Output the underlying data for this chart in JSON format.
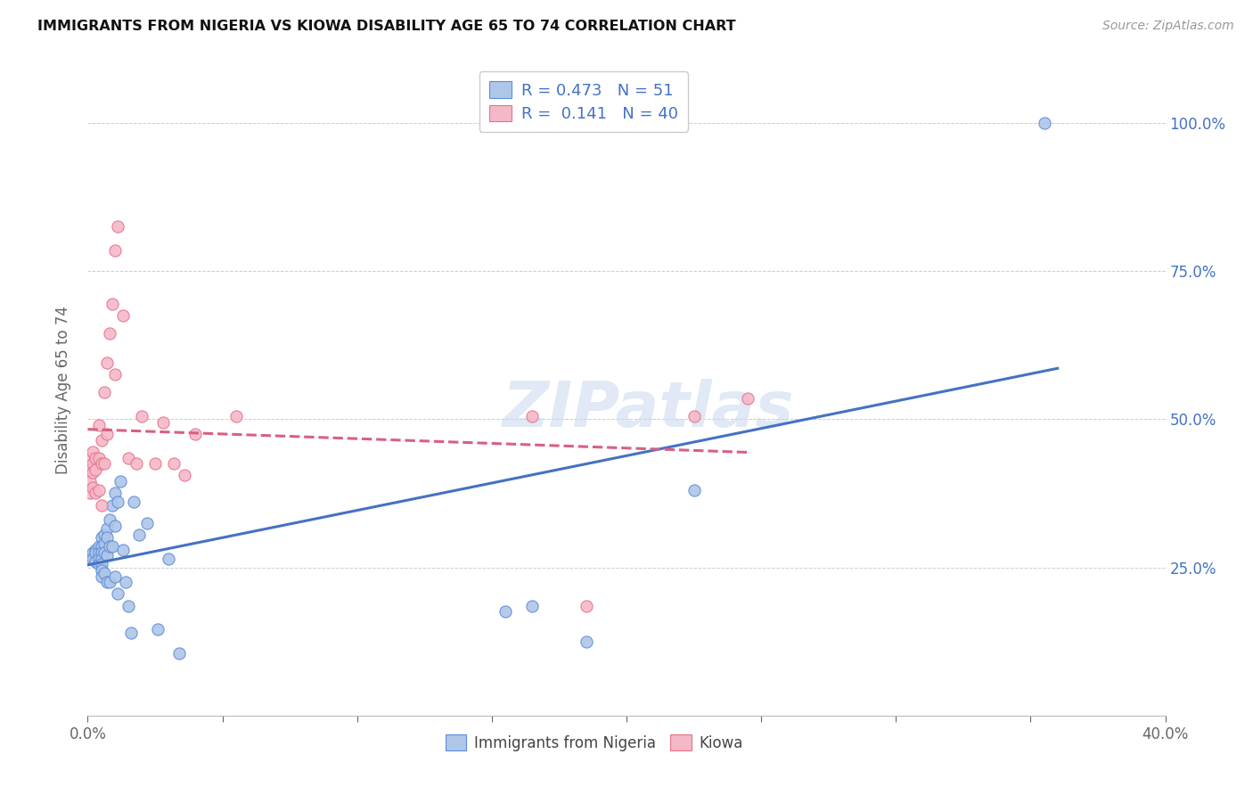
{
  "title": "IMMIGRANTS FROM NIGERIA VS KIOWA DISABILITY AGE 65 TO 74 CORRELATION CHART",
  "source": "Source: ZipAtlas.com",
  "ylabel_label": "Disability Age 65 to 74",
  "xlim": [
    0.0,
    0.4
  ],
  "ylim": [
    0.0,
    1.1
  ],
  "ytick_positions": [
    0.0,
    0.25,
    0.5,
    0.75,
    1.0
  ],
  "ytick_labels": [
    "",
    "25.0%",
    "50.0%",
    "75.0%",
    "100.0%"
  ],
  "xtick_positions": [
    0.0,
    0.05,
    0.1,
    0.15,
    0.2,
    0.25,
    0.3,
    0.35,
    0.4
  ],
  "xtick_labels": [
    "0.0%",
    "",
    "",
    "",
    "",
    "",
    "",
    "",
    "40.0%"
  ],
  "blue_R": 0.473,
  "blue_N": 51,
  "pink_R": 0.141,
  "pink_N": 40,
  "blue_face_color": "#aec6e8",
  "blue_edge_color": "#5b8dd9",
  "pink_face_color": "#f5b8c8",
  "pink_edge_color": "#e8728a",
  "blue_line_color": "#4472c4",
  "pink_line_color": "#d96080",
  "legend_text_color": "#4472c4",
  "watermark": "ZIPatlas",
  "blue_x": [
    0.001,
    0.002,
    0.002,
    0.003,
    0.003,
    0.003,
    0.004,
    0.004,
    0.004,
    0.004,
    0.005,
    0.005,
    0.005,
    0.005,
    0.005,
    0.005,
    0.005,
    0.006,
    0.006,
    0.006,
    0.006,
    0.007,
    0.007,
    0.007,
    0.007,
    0.008,
    0.008,
    0.008,
    0.009,
    0.009,
    0.01,
    0.01,
    0.01,
    0.011,
    0.011,
    0.012,
    0.013,
    0.014,
    0.015,
    0.016,
    0.017,
    0.019,
    0.022,
    0.026,
    0.03,
    0.034,
    0.155,
    0.165,
    0.185,
    0.225,
    0.355
  ],
  "blue_y": [
    0.265,
    0.275,
    0.265,
    0.28,
    0.275,
    0.26,
    0.285,
    0.275,
    0.265,
    0.255,
    0.3,
    0.285,
    0.275,
    0.265,
    0.255,
    0.245,
    0.235,
    0.305,
    0.29,
    0.275,
    0.24,
    0.315,
    0.3,
    0.27,
    0.225,
    0.33,
    0.285,
    0.225,
    0.355,
    0.285,
    0.375,
    0.32,
    0.235,
    0.36,
    0.205,
    0.395,
    0.28,
    0.225,
    0.185,
    0.14,
    0.36,
    0.305,
    0.325,
    0.145,
    0.265,
    0.105,
    0.175,
    0.185,
    0.125,
    0.38,
    1.0
  ],
  "pink_x": [
    0.001,
    0.001,
    0.001,
    0.001,
    0.002,
    0.002,
    0.002,
    0.002,
    0.003,
    0.003,
    0.003,
    0.004,
    0.004,
    0.004,
    0.005,
    0.005,
    0.005,
    0.006,
    0.006,
    0.007,
    0.007,
    0.008,
    0.009,
    0.01,
    0.011,
    0.013,
    0.015,
    0.018,
    0.02,
    0.025,
    0.028,
    0.032,
    0.036,
    0.04,
    0.055,
    0.165,
    0.185,
    0.225,
    0.245,
    0.01
  ],
  "pink_y": [
    0.435,
    0.415,
    0.395,
    0.375,
    0.445,
    0.425,
    0.41,
    0.385,
    0.435,
    0.415,
    0.375,
    0.49,
    0.435,
    0.38,
    0.465,
    0.425,
    0.355,
    0.545,
    0.425,
    0.595,
    0.475,
    0.645,
    0.695,
    0.575,
    0.825,
    0.675,
    0.435,
    0.425,
    0.505,
    0.425,
    0.495,
    0.425,
    0.405,
    0.475,
    0.505,
    0.505,
    0.185,
    0.505,
    0.535,
    0.785
  ]
}
